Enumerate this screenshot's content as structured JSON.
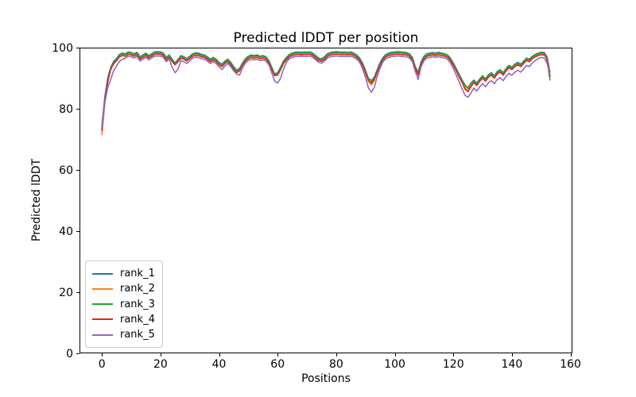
{
  "figure": {
    "background": "#ffffff"
  },
  "chart_data": {
    "type": "line",
    "title": "Predicted lDDT per position",
    "xlabel": "Positions",
    "ylabel": "Predicted lDDT",
    "xlim": [
      -7.65,
      160.65
    ],
    "ylim": [
      0,
      100
    ],
    "x_ticks": [
      0,
      20,
      40,
      60,
      80,
      100,
      120,
      140,
      160
    ],
    "y_ticks": [
      0,
      20,
      40,
      60,
      80,
      100
    ],
    "grid": false,
    "legend_position": "lower left",
    "x_start": 0,
    "x_step": 1,
    "series": [
      {
        "name": "rank_1",
        "color": "#1f77b4",
        "values": [
          74.5,
          84,
          90,
          93.5,
          95.5,
          96.5,
          97.8,
          98.2,
          98,
          98.6,
          98.4,
          98,
          98.5,
          97,
          97.6,
          98.2,
          97.4,
          98,
          98.6,
          98.7,
          98.6,
          98.2,
          96.8,
          97.6,
          96.2,
          95,
          96.2,
          97.4,
          97,
          96.4,
          97.2,
          98,
          98.3,
          98.2,
          97.8,
          97.6,
          97,
          96.2,
          96.8,
          96.2,
          95.2,
          94.6,
          95.6,
          96.2,
          95.2,
          93.8,
          92.6,
          93.2,
          95,
          96.4,
          97.2,
          97.6,
          97.4,
          97.6,
          97.2,
          97.4,
          97,
          95.8,
          93.6,
          91.4,
          91.8,
          93.6,
          95.6,
          96.8,
          97.8,
          98.2,
          98.5,
          98.6,
          98.4,
          98.6,
          98.5,
          98.6,
          98.2,
          97.4,
          96.6,
          96.3,
          97,
          98,
          98.4,
          98.6,
          98.7,
          98.6,
          98.5,
          98.6,
          98.4,
          98.6,
          98.2,
          97.6,
          96.6,
          95,
          92.6,
          90,
          89.2,
          90.4,
          92.8,
          95.2,
          96.8,
          97.8,
          98.2,
          98.5,
          98.6,
          98.7,
          98.6,
          98.5,
          98.4,
          98,
          96.8,
          93.8,
          92,
          95.4,
          97.2,
          98,
          98.2,
          98.4,
          98.2,
          98.5,
          98.2,
          98,
          97.6,
          96.6,
          95,
          93.2,
          91.2,
          89.4,
          87.8,
          86.8,
          88.4,
          89.4,
          88.4,
          89.8,
          90.8,
          89.8,
          91.2,
          91.8,
          90.8,
          92.2,
          92.8,
          91.8,
          93.2,
          94.2,
          93.6,
          94.6,
          95.2,
          94.6,
          95.6,
          96.6,
          96.2,
          97.2,
          97.8,
          98.2,
          98.5,
          98.4,
          97,
          92
        ]
      },
      {
        "name": "rank_2",
        "color": "#ff7f0e",
        "values": [
          71.5,
          82,
          88.5,
          93,
          95.1,
          96.1,
          97.4,
          97.8,
          97.6,
          98.2,
          98,
          97.6,
          98.1,
          96.6,
          97.2,
          97.8,
          97,
          97.6,
          98.2,
          98.3,
          98.2,
          97.8,
          96.4,
          97.2,
          95.8,
          94.6,
          95.8,
          97,
          96.6,
          96,
          96.8,
          97.6,
          97.9,
          97.8,
          97.4,
          97.2,
          96.6,
          95.8,
          96.4,
          95.8,
          94.8,
          94.2,
          95.2,
          95.8,
          94.8,
          93.4,
          92.2,
          92.8,
          94.6,
          96,
          96.8,
          97.2,
          97,
          97.2,
          96.8,
          97,
          96.6,
          95.4,
          93.2,
          91,
          91.4,
          93.2,
          95.2,
          96.4,
          97.4,
          97.8,
          98.1,
          98.2,
          98,
          98.2,
          98.1,
          98.2,
          97.8,
          97,
          96.2,
          95.9,
          96.6,
          97.6,
          98,
          98.2,
          98.3,
          98.2,
          98.1,
          98.2,
          98,
          98.2,
          97.8,
          97.2,
          96.2,
          94.6,
          92,
          89,
          87.8,
          89.2,
          92.2,
          94.8,
          96.4,
          97.4,
          97.8,
          98.1,
          98.2,
          98.3,
          98.2,
          98.1,
          98,
          97.6,
          96.4,
          93.2,
          91,
          95,
          96.8,
          97.6,
          97.8,
          98,
          97.8,
          98.1,
          97.8,
          97.6,
          97.2,
          96.2,
          94.6,
          92.8,
          90.8,
          88.8,
          86.8,
          85.8,
          87.4,
          89,
          88,
          89.4,
          90.4,
          89.4,
          90.8,
          91.4,
          90.4,
          91.8,
          92.4,
          91.4,
          92.8,
          93.8,
          93.2,
          94.2,
          94.8,
          94.2,
          95.2,
          96.2,
          95.8,
          96.8,
          97.4,
          97.8,
          98.1,
          98,
          96.6,
          90.8
        ]
      },
      {
        "name": "rank_3",
        "color": "#2ca02c",
        "values": [
          73.5,
          83,
          89.2,
          93.2,
          95.3,
          96.3,
          97.6,
          98,
          97.8,
          98.4,
          98.2,
          97.8,
          98.3,
          96.8,
          97.4,
          98,
          97.2,
          97.8,
          98.4,
          98.5,
          98.4,
          98,
          96.6,
          97.4,
          96,
          94.7,
          96,
          97.2,
          96.8,
          96.2,
          97,
          97.8,
          98.1,
          98,
          97.6,
          97.4,
          96.8,
          96,
          96.6,
          96,
          95,
          94.4,
          95.4,
          96,
          95,
          93.6,
          92.4,
          93,
          94.8,
          96.2,
          97,
          97.4,
          97.2,
          97.4,
          97,
          97.2,
          96.8,
          95.6,
          93.4,
          91.2,
          91.6,
          93.4,
          95.4,
          96.6,
          97.6,
          98,
          98.3,
          98.4,
          98.2,
          98.4,
          98.3,
          98.4,
          98,
          97.2,
          96.4,
          96.1,
          96.8,
          97.8,
          98.2,
          98.4,
          98.5,
          98.4,
          98.3,
          98.4,
          98.2,
          98.4,
          98,
          97.4,
          96.4,
          94.8,
          92.4,
          89.8,
          89,
          90.2,
          92.6,
          95,
          96.6,
          97.6,
          98,
          98.3,
          98.4,
          98.5,
          98.4,
          98.3,
          98.2,
          97.8,
          96.6,
          93.6,
          91.8,
          95.2,
          97,
          97.8,
          98,
          98.2,
          98,
          98.3,
          98,
          97.8,
          97.4,
          96.4,
          94.8,
          93,
          91,
          89.2,
          87.6,
          86.6,
          88.2,
          89.2,
          88.2,
          89.6,
          90.6,
          89.6,
          91,
          91.6,
          90.6,
          92,
          92.6,
          91.6,
          93,
          94,
          93.4,
          94.4,
          95,
          94.4,
          95.4,
          96.4,
          96,
          97,
          97.6,
          98,
          98.3,
          98.2,
          96,
          89.4
        ]
      },
      {
        "name": "rank_4",
        "color": "#d62728",
        "values": [
          73,
          82.5,
          89,
          92.8,
          94.7,
          95.7,
          97,
          97.4,
          97.2,
          97.8,
          97.6,
          97.2,
          97.7,
          96.2,
          96.8,
          97.4,
          96.6,
          97.2,
          97.8,
          97.9,
          97.8,
          97.4,
          96,
          96.8,
          95.4,
          94.4,
          95.4,
          96.6,
          96.2,
          95.6,
          96.4,
          97.2,
          97.5,
          97.4,
          97,
          96.8,
          96.2,
          95.4,
          96,
          95.4,
          94.4,
          93.8,
          94.8,
          95.4,
          94.4,
          93,
          91.8,
          92.4,
          94.2,
          95.6,
          96.4,
          96.8,
          96.6,
          96.8,
          96.4,
          96.6,
          96.2,
          95,
          92.8,
          90.8,
          91,
          92.8,
          94.8,
          96,
          97,
          97.4,
          97.7,
          97.8,
          97.6,
          97.8,
          97.7,
          97.8,
          97.4,
          96.6,
          95.8,
          95.5,
          96.2,
          97.2,
          97.6,
          97.8,
          97.9,
          97.8,
          97.7,
          97.8,
          97.6,
          97.8,
          97.4,
          96.8,
          95.8,
          94.2,
          91.8,
          89.2,
          88.4,
          89.6,
          92,
          94.4,
          96,
          97,
          97.4,
          97.7,
          97.8,
          97.9,
          97.8,
          97.7,
          97.6,
          97.2,
          96,
          93,
          91.2,
          94.6,
          96.4,
          97.2,
          97.4,
          97.6,
          97.4,
          97.7,
          97.4,
          97.2,
          96.8,
          95.8,
          94.2,
          92.4,
          90.4,
          88.6,
          86.4,
          85.6,
          87.2,
          88.6,
          87.6,
          89,
          90,
          89,
          90.4,
          91,
          90,
          91.4,
          92,
          91,
          92.4,
          93.4,
          92.8,
          93.8,
          94.4,
          93.8,
          94.8,
          95.8,
          95.4,
          96.4,
          97,
          97.4,
          97.7,
          97.6,
          96.4,
          90.6
        ]
      },
      {
        "name": "rank_5",
        "color": "#9467bd",
        "values": [
          74,
          82,
          87,
          89.5,
          92.5,
          94,
          95.5,
          96.2,
          96.6,
          97.2,
          97,
          96.6,
          97.1,
          95.6,
          96.2,
          96.8,
          96,
          96.6,
          97.2,
          97.3,
          97.2,
          96.8,
          95.4,
          96.2,
          93.5,
          91.8,
          93,
          95.8,
          95.4,
          94.8,
          95.6,
          96.6,
          96.9,
          96.8,
          96.4,
          96.2,
          95.6,
          94.8,
          95.4,
          94.8,
          93.8,
          92.8,
          94,
          94.8,
          93.8,
          92.4,
          91.4,
          91,
          93.4,
          95,
          95.8,
          96.2,
          96,
          96.2,
          95.8,
          96,
          95.6,
          94.4,
          91.8,
          89,
          88.4,
          90,
          93,
          95.2,
          96.4,
          96.8,
          97.1,
          97.2,
          97,
          97.2,
          97.1,
          97.2,
          96.8,
          96,
          95.2,
          94.9,
          95.6,
          96.6,
          97,
          97.2,
          97.3,
          97.2,
          97.1,
          97.2,
          97,
          97.2,
          96.8,
          96.2,
          95.2,
          93.2,
          90.4,
          86.8,
          85.4,
          87,
          90.6,
          93.4,
          95.4,
          96.4,
          96.8,
          97.1,
          97.2,
          97.3,
          97.2,
          97.1,
          97,
          96.6,
          95.4,
          92.2,
          89.6,
          93.8,
          95.8,
          96.6,
          96.8,
          97,
          96.8,
          97.1,
          96.8,
          96.6,
          96.2,
          95,
          93.2,
          91,
          88.8,
          86.5,
          84.4,
          83.8,
          85.2,
          86.8,
          85.8,
          87.2,
          88.2,
          87.2,
          88.6,
          89.2,
          88.2,
          89.6,
          90.2,
          89.2,
          90.6,
          91.6,
          91,
          92,
          92.6,
          92,
          93,
          94.2,
          93.8,
          95,
          95.8,
          96.4,
          96.8,
          96.6,
          95,
          91.2
        ]
      }
    ]
  }
}
